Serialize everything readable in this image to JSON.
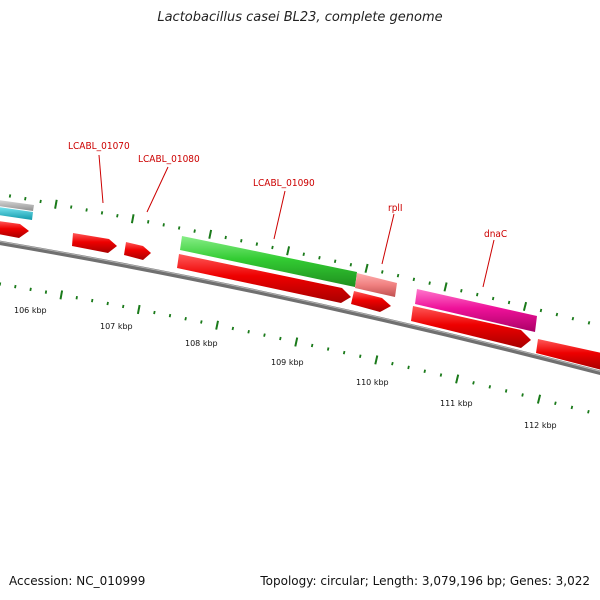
{
  "title": "Lactobacillus casei BL23, complete genome",
  "footer": {
    "accession": "Accession: NC_010999",
    "summary": "Topology: circular; Length: 3,079,196 bp; Genes: 3,022"
  },
  "map": {
    "colors": {
      "backbone": "#6e6e6e",
      "cds": "#ee0000",
      "label": "#cc0000",
      "tick": "#1a7a1a",
      "green_feature": "#33cc33",
      "pink_feature": "#ee1199",
      "salmon_feature": "#f08080",
      "cyan_feature": "#22bbcc",
      "grey_feature": "#a0a0a0"
    },
    "kbp_labels": [
      "106 kbp",
      "107 kbp",
      "108 kbp",
      "109 kbp",
      "110 kbp",
      "111 kbp",
      "112 kbp"
    ],
    "gene_labels": [
      "LCABL_01070",
      "LCABL_01080",
      "LCABL_01090",
      "rplI",
      "dnaC"
    ]
  }
}
